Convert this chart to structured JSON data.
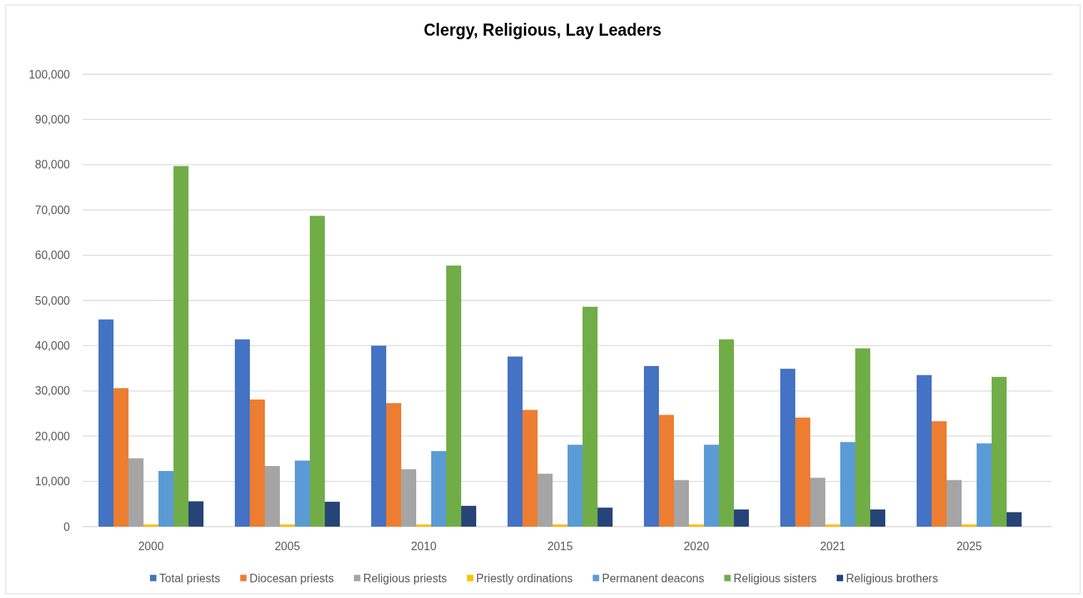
{
  "chart_data": {
    "type": "bar",
    "title": "Clergy, Religious, Lay Leaders",
    "categories": [
      "2000",
      "2005",
      "2010",
      "2015",
      "2020",
      "2021",
      "2025"
    ],
    "series": [
      {
        "name": "Total priests",
        "color": "#4472c4",
        "values": [
          45800,
          41400,
          40000,
          37600,
          35500,
          34900,
          33500
        ]
      },
      {
        "name": "Diocesan priests",
        "color": "#ed7d31",
        "values": [
          30600,
          28100,
          27300,
          25800,
          24700,
          24100,
          23300
        ]
      },
      {
        "name": "Religious priests",
        "color": "#a5a5a5",
        "values": [
          15100,
          13400,
          12700,
          11700,
          10300,
          10800,
          10300
        ]
      },
      {
        "name": "Priestly ordinations",
        "color": "#ffc000",
        "values": [
          500,
          500,
          500,
          500,
          500,
          500,
          500
        ]
      },
      {
        "name": "Permanent deacons",
        "color": "#5b9bd5",
        "values": [
          12300,
          14600,
          16700,
          18100,
          18100,
          18700,
          18400
        ]
      },
      {
        "name": "Religious sisters",
        "color": "#70ad47",
        "values": [
          79700,
          68700,
          57700,
          48600,
          41400,
          39400,
          33100
        ]
      },
      {
        "name": "Religious brothers",
        "color": "#264478",
        "values": [
          5600,
          5500,
          4600,
          4200,
          3800,
          3800,
          3200
        ]
      }
    ],
    "ylim": [
      0,
      100000
    ],
    "yticks": [
      0,
      {
        "value": 10000,
        "label": "10,000"
      },
      {
        "value": 20000,
        "label": "20,000"
      },
      {
        "value": 30000,
        "label": "30,000"
      },
      {
        "value": 40000,
        "label": "40,000"
      },
      {
        "value": 50000,
        "label": "50,000"
      },
      {
        "value": 60000,
        "label": "60,000"
      },
      {
        "value": 70000,
        "label": "70,000"
      },
      {
        "value": 80000,
        "label": "80,000"
      },
      {
        "value": 90000,
        "label": "90,000"
      },
      {
        "value": 100000,
        "label": "100,000"
      }
    ],
    "grid": "y",
    "legend": "bottom"
  }
}
